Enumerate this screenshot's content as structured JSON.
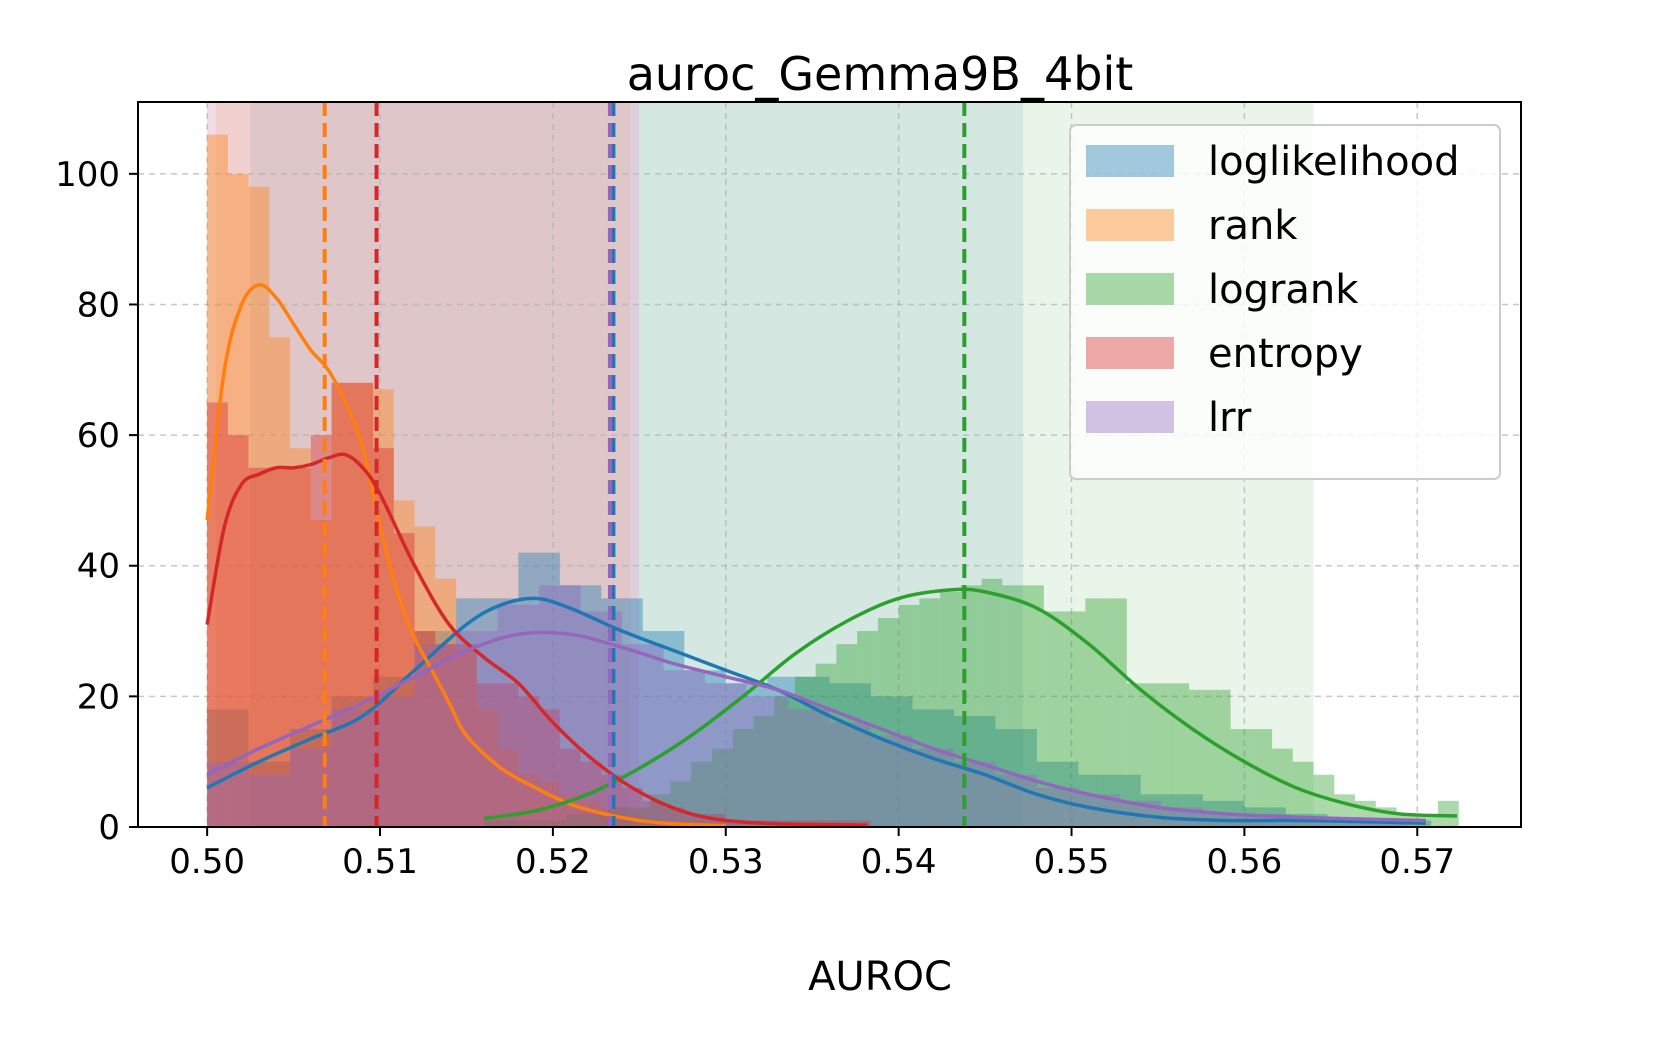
{
  "chart_data": {
    "type": "histogram",
    "title": "auroc_Gemma9B_4bit",
    "xlabel": "AUROC",
    "ylabel": "",
    "xlim": [
      0.496,
      0.576
    ],
    "ylim": [
      0,
      111
    ],
    "xticks": [
      0.5,
      0.51,
      0.52,
      0.53,
      0.54,
      0.55,
      0.56,
      0.57
    ],
    "xtick_labels": [
      "0.50",
      "0.51",
      "0.52",
      "0.53",
      "0.54",
      "0.55",
      "0.56",
      "0.57"
    ],
    "yticks": [
      0,
      20,
      40,
      60,
      80,
      100
    ],
    "ytick_labels": [
      "0",
      "20",
      "40",
      "60",
      "80",
      "100"
    ],
    "grid": true,
    "legend_position": "top-right",
    "series": [
      {
        "name": "loglikelihood",
        "color": "#1f77b4",
        "bins": [
          0.5,
          0.5012,
          0.5024,
          0.5036,
          0.5048,
          0.506,
          0.5072,
          0.5084,
          0.5096,
          0.5108,
          0.512,
          0.5132,
          0.5144,
          0.5156,
          0.5168,
          0.518,
          0.5192,
          0.5204,
          0.5216,
          0.5228,
          0.524,
          0.5252,
          0.5264,
          0.5276,
          0.5288,
          0.53,
          0.5312,
          0.5324,
          0.5336,
          0.5348,
          0.536,
          0.5372,
          0.5384,
          0.5396,
          0.5408,
          0.542,
          0.5432,
          0.5444,
          0.5456,
          0.5468,
          0.548,
          0.5492,
          0.5504,
          0.5516,
          0.5528,
          0.554,
          0.5552,
          0.5564,
          0.5576,
          0.5588,
          0.56,
          0.5612,
          0.5624,
          0.5636,
          0.5648,
          0.566,
          0.5672,
          0.5684,
          0.5696,
          0.5708
        ],
        "counts": [
          18,
          18,
          10,
          10,
          15,
          15,
          20,
          20,
          23,
          23,
          30,
          30,
          35,
          35,
          35,
          42,
          42,
          37,
          37,
          35,
          35,
          30,
          30,
          24,
          24,
          22,
          22,
          23,
          23,
          23,
          22,
          22,
          20,
          20,
          18,
          18,
          17,
          17,
          15,
          15,
          10,
          10,
          8,
          8,
          8,
          5,
          5,
          5,
          4,
          4,
          3,
          3,
          2,
          2,
          1,
          1,
          1,
          1,
          1
        ],
        "median": 0.5235,
        "band": [
          0.5025,
          0.5472
        ],
        "kde_x": [
          0.5,
          0.503,
          0.506,
          0.509,
          0.512,
          0.515,
          0.517,
          0.519,
          0.521,
          0.524,
          0.527,
          0.53,
          0.533,
          0.536,
          0.539,
          0.542,
          0.545,
          0.548,
          0.551,
          0.555,
          0.559,
          0.563,
          0.567,
          0.5705
        ],
        "kde_y": [
          6,
          10,
          13.5,
          17,
          24,
          31,
          34,
          35,
          33.5,
          30,
          27,
          24,
          21,
          17,
          13.5,
          10.5,
          8,
          5,
          3,
          1.5,
          1,
          1,
          0.8,
          0.6
        ]
      },
      {
        "name": "rank",
        "color": "#ff7f0e",
        "bins": [
          0.5,
          0.5012,
          0.5024,
          0.5036,
          0.5048,
          0.506,
          0.5072,
          0.5084,
          0.5096,
          0.5108,
          0.512,
          0.5132,
          0.5144,
          0.5156,
          0.5168,
          0.518,
          0.5192,
          0.5204,
          0.5216,
          0.5228,
          0.524,
          0.5252,
          0.5264,
          0.5276,
          0.5288,
          0.53
        ],
        "counts": [
          106,
          100,
          98,
          75,
          58,
          47,
          68,
          68,
          67,
          50,
          46,
          38,
          27,
          18,
          12,
          8,
          7,
          5,
          4,
          3,
          2,
          1,
          1,
          1,
          0
        ],
        "median": 0.5068,
        "band": [
          0.5005,
          0.5245
        ],
        "kde_x": [
          0.5,
          0.501,
          0.502,
          0.503,
          0.504,
          0.505,
          0.506,
          0.507,
          0.508,
          0.509,
          0.51,
          0.511,
          0.512,
          0.513,
          0.514,
          0.515,
          0.517,
          0.519,
          0.521,
          0.523,
          0.525,
          0.527,
          0.53
        ],
        "kde_y": [
          47,
          70,
          80,
          83,
          81,
          77,
          73,
          70,
          65,
          58,
          46,
          36,
          29,
          24,
          19,
          14,
          9,
          6,
          3.5,
          2,
          1,
          0.5,
          0.2
        ]
      },
      {
        "name": "logrank",
        "color": "#2ca02c",
        "bins": [
          0.516,
          0.5172,
          0.5184,
          0.5196,
          0.5208,
          0.522,
          0.5232,
          0.5244,
          0.5256,
          0.5268,
          0.528,
          0.5292,
          0.5304,
          0.5316,
          0.5328,
          0.534,
          0.5352,
          0.5364,
          0.5376,
          0.5388,
          0.54,
          0.5412,
          0.5424,
          0.5436,
          0.5448,
          0.546,
          0.5472,
          0.5484,
          0.5496,
          0.5508,
          0.552,
          0.5532,
          0.5544,
          0.5556,
          0.5568,
          0.558,
          0.5592,
          0.5604,
          0.5616,
          0.5628,
          0.564,
          0.5652,
          0.5664,
          0.5676,
          0.5688,
          0.57,
          0.5712,
          0.5724
        ],
        "counts": [
          1,
          1,
          1,
          1,
          2,
          2,
          3,
          3,
          5,
          7,
          10,
          12,
          15,
          17,
          20,
          23,
          25,
          28,
          30,
          32,
          34,
          35,
          36,
          37,
          38,
          37,
          37,
          33,
          33,
          35,
          35,
          22,
          22,
          22,
          21,
          21,
          15,
          15,
          12,
          10,
          8,
          5,
          4,
          3,
          2,
          2,
          4
        ],
        "median": 0.5438,
        "band": [
          0.525,
          0.564
        ],
        "kde_x": [
          0.516,
          0.519,
          0.522,
          0.525,
          0.528,
          0.531,
          0.534,
          0.537,
          0.54,
          0.543,
          0.545,
          0.548,
          0.551,
          0.554,
          0.557,
          0.56,
          0.563,
          0.566,
          0.569,
          0.5723
        ],
        "kde_y": [
          1.3,
          2.5,
          5,
          9,
          14,
          20,
          26.5,
          31.5,
          35,
          36.3,
          36,
          33.5,
          28,
          21,
          15,
          10,
          6,
          3.5,
          2,
          1.7
        ]
      },
      {
        "name": "entropy",
        "color": "#d62728",
        "bins": [
          0.5,
          0.5012,
          0.5024,
          0.5036,
          0.5048,
          0.506,
          0.5072,
          0.5084,
          0.5096,
          0.5108,
          0.512,
          0.5132,
          0.5144,
          0.5156,
          0.5168,
          0.518,
          0.5192,
          0.5204,
          0.5216,
          0.5228,
          0.524,
          0.5252,
          0.5264,
          0.5276,
          0.5288,
          0.53,
          0.5312,
          0.5324,
          0.5336,
          0.5348,
          0.536,
          0.5372,
          0.5384
        ],
        "counts": [
          65,
          60,
          55,
          55,
          55,
          60,
          68,
          68,
          58,
          45,
          30,
          28,
          28,
          22,
          22,
          20,
          18,
          12,
          10,
          8,
          6,
          4,
          3,
          2,
          2,
          1,
          1,
          1,
          1,
          1,
          1,
          1
        ],
        "median": 0.5098,
        "band": [
          0.5,
          0.525
        ],
        "kde_x": [
          0.5,
          0.501,
          0.502,
          0.503,
          0.504,
          0.505,
          0.506,
          0.507,
          0.508,
          0.509,
          0.51,
          0.512,
          0.514,
          0.516,
          0.518,
          0.52,
          0.522,
          0.524,
          0.526,
          0.528,
          0.53,
          0.533,
          0.5382
        ],
        "kde_y": [
          31,
          46,
          52.5,
          54,
          55,
          55,
          55.5,
          56.5,
          57,
          55,
          51,
          40,
          31,
          26,
          22,
          16,
          11,
          7,
          4,
          2,
          1,
          0.5,
          0.3
        ]
      },
      {
        "name": "lrr",
        "color": "#9467bd",
        "bins": [
          0.5,
          0.5012,
          0.5024,
          0.5036,
          0.5048,
          0.506,
          0.5072,
          0.5084,
          0.5096,
          0.5108,
          0.512,
          0.5132,
          0.5144,
          0.5156,
          0.5168,
          0.518,
          0.5192,
          0.5204,
          0.5216,
          0.5228,
          0.524,
          0.5252,
          0.5264,
          0.5276,
          0.5288,
          0.53,
          0.5312,
          0.5324,
          0.5336,
          0.5348,
          0.536,
          0.5372,
          0.5384,
          0.5396,
          0.5408,
          0.542,
          0.5432,
          0.5444,
          0.5456,
          0.5468,
          0.548,
          0.5492,
          0.5504,
          0.5516,
          0.5528,
          0.554,
          0.5552,
          0.5564,
          0.5576,
          0.5588,
          0.56,
          0.5612,
          0.5624,
          0.5636,
          0.5648,
          0.566,
          0.5672,
          0.5684,
          0.5696
        ],
        "counts": [
          10,
          10,
          8,
          8,
          12,
          12,
          18,
          18,
          20,
          20,
          28,
          28,
          30,
          30,
          34,
          34,
          37,
          37,
          33,
          33,
          28,
          28,
          24,
          24,
          22,
          22,
          20,
          20,
          18,
          18,
          16,
          16,
          14,
          14,
          12,
          12,
          10,
          10,
          8,
          8,
          6,
          6,
          5,
          5,
          4,
          4,
          3,
          3,
          2,
          2,
          2,
          2,
          1,
          1,
          1,
          1,
          1,
          1
        ],
        "median": 0.5233,
        "band": [
          0.5,
          0.525
        ],
        "kde_x": [
          0.5,
          0.503,
          0.506,
          0.509,
          0.512,
          0.515,
          0.518,
          0.521,
          0.524,
          0.527,
          0.53,
          0.533,
          0.536,
          0.539,
          0.542,
          0.545,
          0.548,
          0.551,
          0.555,
          0.559,
          0.563,
          0.567,
          0.5705
        ],
        "kde_y": [
          8,
          12,
          15.5,
          19,
          23,
          27,
          29.5,
          29.5,
          27.5,
          25,
          23,
          21,
          18,
          15,
          12,
          9.5,
          7,
          5,
          3,
          2,
          1.5,
          1.2,
          1
        ]
      }
    ]
  }
}
